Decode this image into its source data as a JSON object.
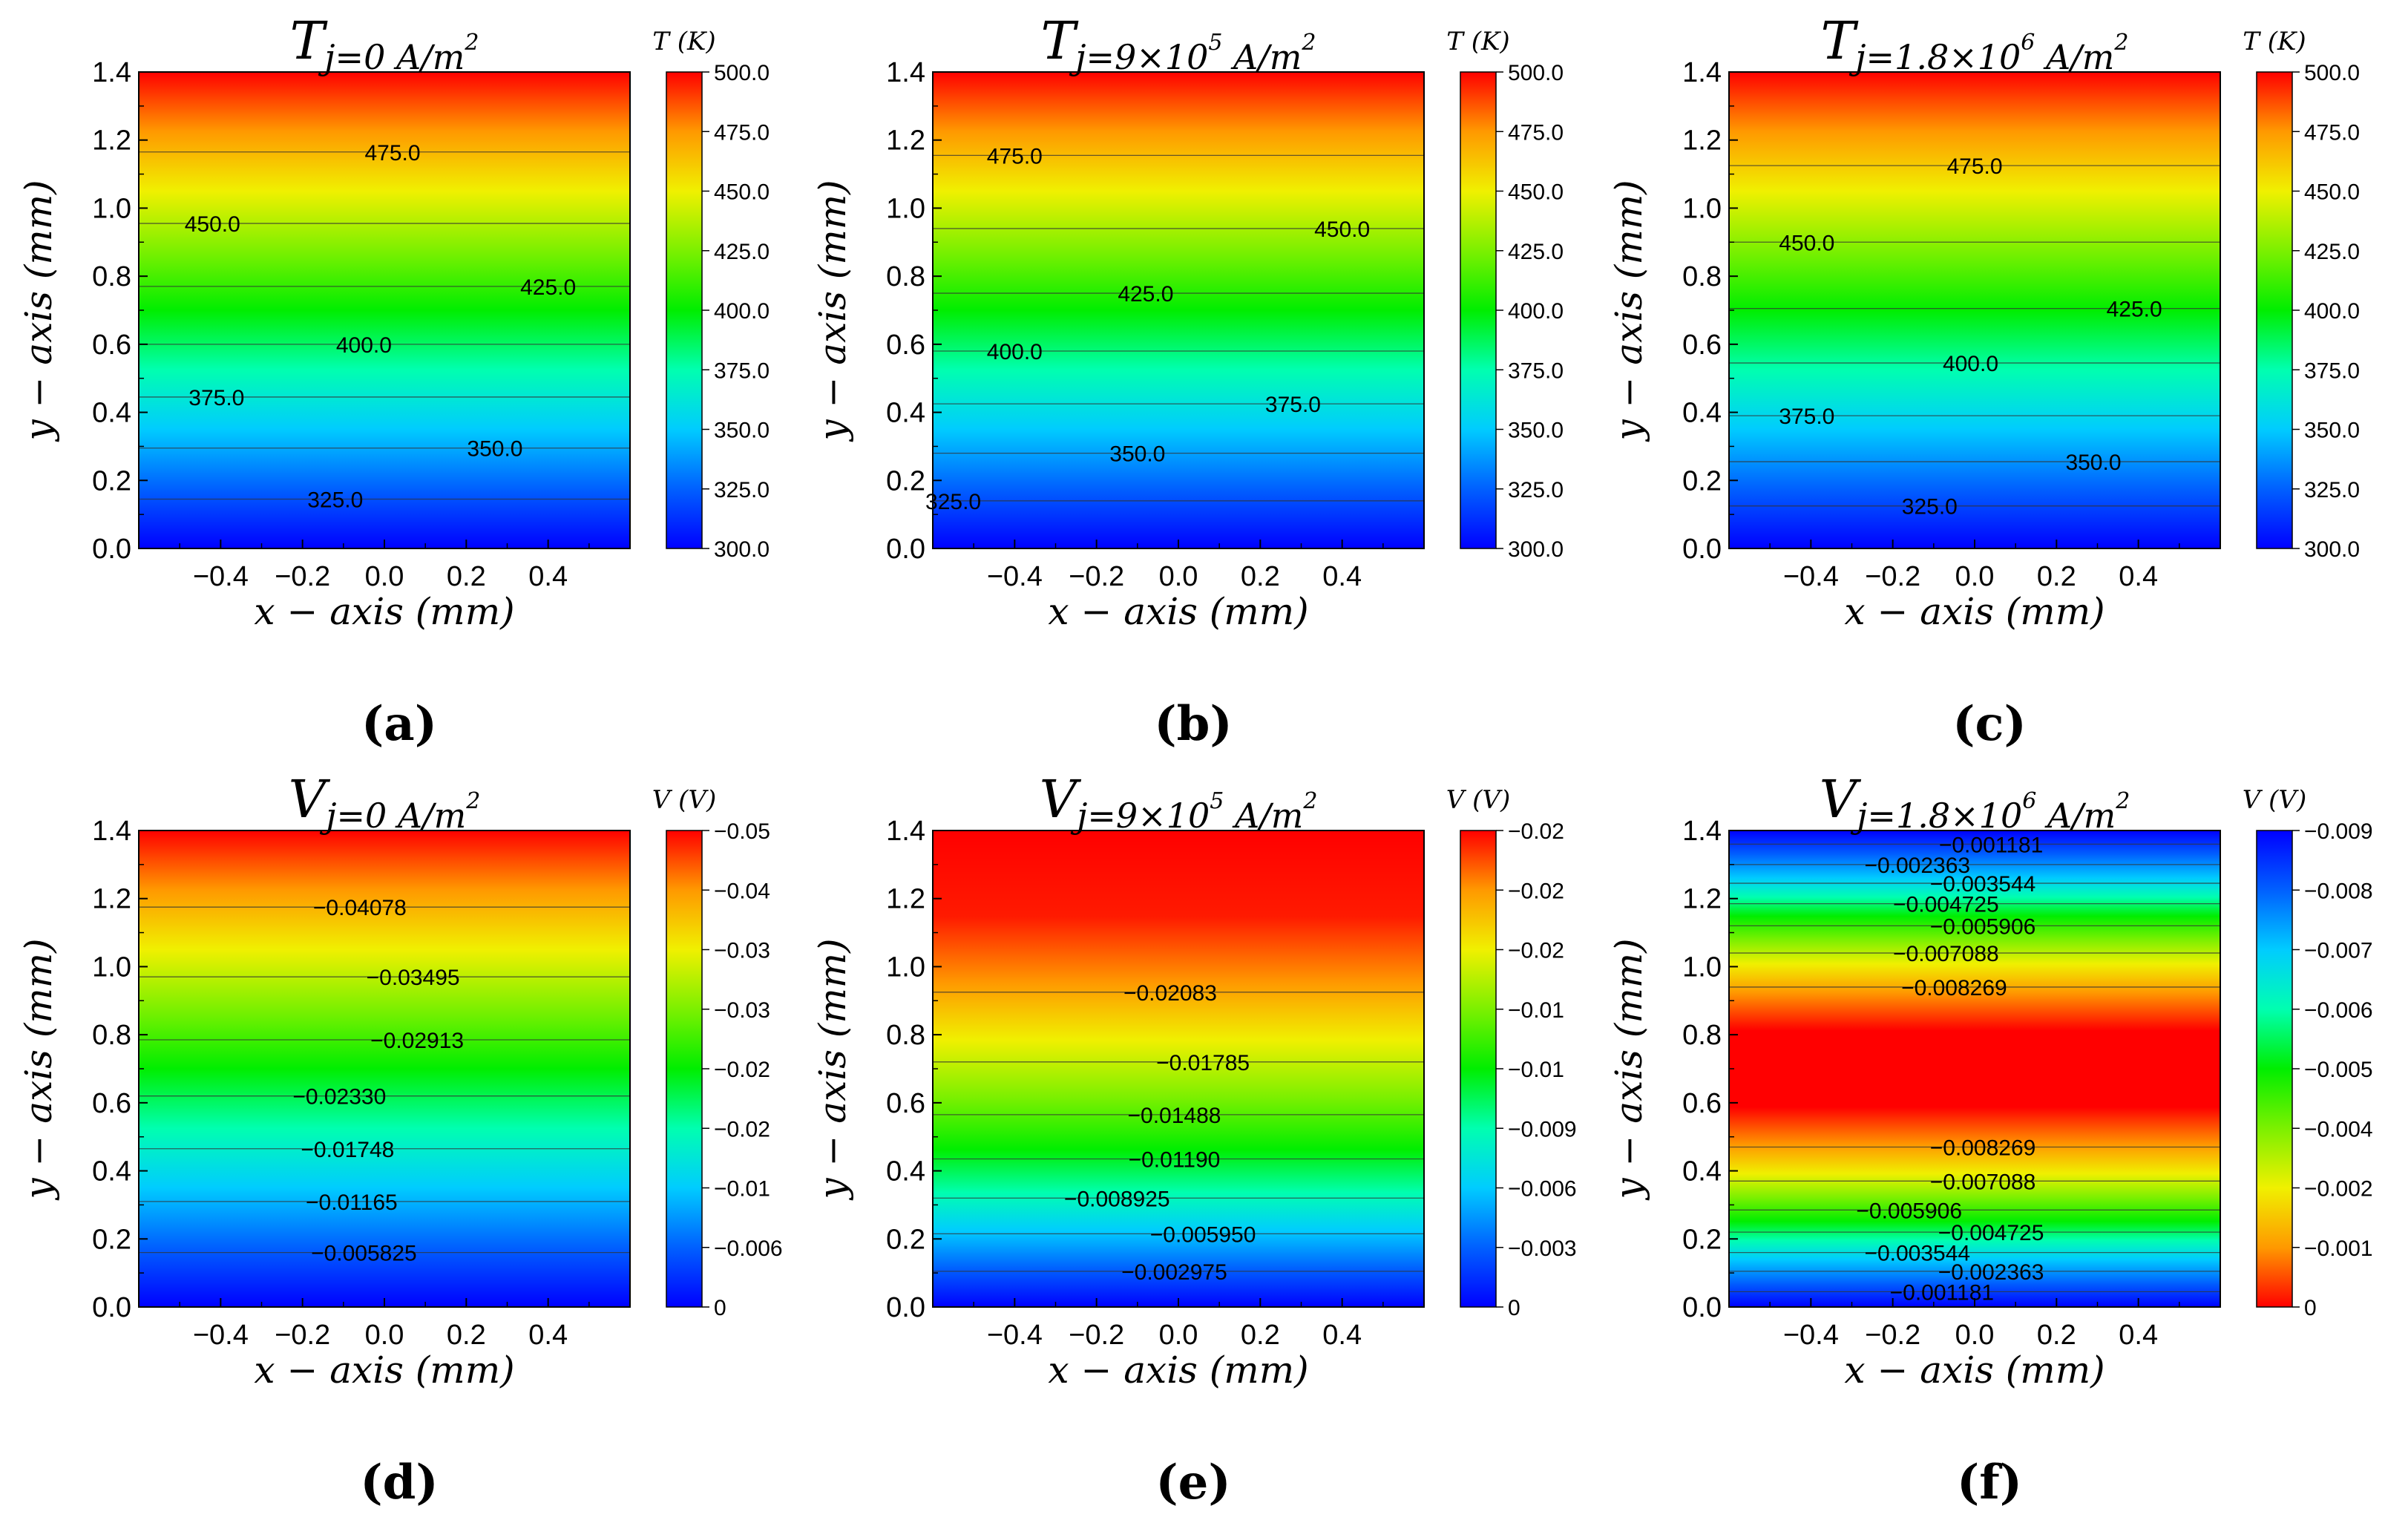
{
  "chart_data": [
    {
      "type": "heatmap",
      "panel": "(a)",
      "title": {
        "main": "T",
        "sub": "j=0 A/m",
        "sup": "2"
      },
      "xlabel": "x − axis (mm)",
      "ylabel": "y − axis (mm)",
      "x_ticks": [
        "−0.4",
        "−0.2",
        "0.0",
        "0.2",
        "0.4"
      ],
      "x_tick_values": [
        -0.4,
        -0.2,
        0.0,
        0.2,
        0.4
      ],
      "xlim": [
        -0.6,
        0.6
      ],
      "y_ticks": [
        "0.0",
        "0.2",
        "0.4",
        "0.6",
        "0.8",
        "1.0",
        "1.2",
        "1.4"
      ],
      "y_tick_values": [
        0.0,
        0.2,
        0.4,
        0.6,
        0.8,
        1.0,
        1.2,
        1.4
      ],
      "ylim": [
        0.0,
        1.4
      ],
      "colorbar": {
        "title": "T (K)",
        "reversed": false,
        "ticks": [
          "500.0",
          "475.0",
          "450.0",
          "425.0",
          "400.0",
          "375.0",
          "350.0",
          "325.0",
          "300.0"
        ],
        "tick_fractions": [
          1.0,
          0.875,
          0.75,
          0.625,
          0.5,
          0.375,
          0.25,
          0.125,
          0.0
        ]
      },
      "contours": [
        {
          "label": "325.0",
          "y": 0.145,
          "x": -0.12
        },
        {
          "label": "350.0",
          "y": 0.295,
          "x": 0.27
        },
        {
          "label": "375.0",
          "y": 0.445,
          "x": -0.41
        },
        {
          "label": "400.0",
          "y": 0.6,
          "x": -0.05
        },
        {
          "label": "425.0",
          "y": 0.77,
          "x": 0.4
        },
        {
          "label": "450.0",
          "y": 0.955,
          "x": -0.42
        },
        {
          "label": "475.0",
          "y": 1.165,
          "x": 0.02
        }
      ]
    },
    {
      "type": "heatmap",
      "panel": "(b)",
      "title": {
        "main": "T",
        "sub": "j=9×10",
        "sup": "5",
        "sub2": " A/m",
        "sup2": "2"
      },
      "xlabel": "x − axis (mm)",
      "ylabel": "y − axis (mm)",
      "x_ticks": [
        "−0.4",
        "−0.2",
        "0.0",
        "0.2",
        "0.4"
      ],
      "x_tick_values": [
        -0.4,
        -0.2,
        0.0,
        0.2,
        0.4
      ],
      "xlim": [
        -0.6,
        0.6
      ],
      "y_ticks": [
        "0.0",
        "0.2",
        "0.4",
        "0.6",
        "0.8",
        "1.0",
        "1.2",
        "1.4"
      ],
      "y_tick_values": [
        0.0,
        0.2,
        0.4,
        0.6,
        0.8,
        1.0,
        1.2,
        1.4
      ],
      "ylim": [
        0.0,
        1.4
      ],
      "colorbar": {
        "title": "T (K)",
        "reversed": false,
        "ticks": [
          "500.0",
          "475.0",
          "450.0",
          "425.0",
          "400.0",
          "375.0",
          "350.0",
          "325.0",
          "300.0"
        ],
        "tick_fractions": [
          1.0,
          0.875,
          0.75,
          0.625,
          0.5,
          0.375,
          0.25,
          0.125,
          0.0
        ]
      },
      "contours": [
        {
          "label": "325.0",
          "y": 0.14,
          "x": -0.55
        },
        {
          "label": "350.0",
          "y": 0.28,
          "x": -0.1
        },
        {
          "label": "375.0",
          "y": 0.425,
          "x": 0.28
        },
        {
          "label": "400.0",
          "y": 0.58,
          "x": -0.4
        },
        {
          "label": "425.0",
          "y": 0.75,
          "x": -0.08
        },
        {
          "label": "450.0",
          "y": 0.94,
          "x": 0.4
        },
        {
          "label": "475.0",
          "y": 1.155,
          "x": -0.4
        }
      ]
    },
    {
      "type": "heatmap",
      "panel": "(c)",
      "title": {
        "main": "T",
        "sub": "j=1.8×10",
        "sup": "6",
        "sub2": " A/m",
        "sup2": "2"
      },
      "xlabel": "x − axis (mm)",
      "ylabel": "y − axis (mm)",
      "x_ticks": [
        "−0.4",
        "−0.2",
        "0.0",
        "0.2",
        "0.4"
      ],
      "x_tick_values": [
        -0.4,
        -0.2,
        0.0,
        0.2,
        0.4
      ],
      "xlim": [
        -0.6,
        0.6
      ],
      "y_ticks": [
        "0.0",
        "0.2",
        "0.4",
        "0.6",
        "0.8",
        "1.0",
        "1.2",
        "1.4"
      ],
      "y_tick_values": [
        0.0,
        0.2,
        0.4,
        0.6,
        0.8,
        1.0,
        1.2,
        1.4
      ],
      "ylim": [
        0.0,
        1.4
      ],
      "colorbar": {
        "title": "T (K)",
        "reversed": false,
        "ticks": [
          "500.0",
          "475.0",
          "450.0",
          "425.0",
          "400.0",
          "375.0",
          "350.0",
          "325.0",
          "300.0"
        ],
        "tick_fractions": [
          1.0,
          0.875,
          0.75,
          0.625,
          0.5,
          0.375,
          0.25,
          0.125,
          0.0
        ]
      },
      "contours": [
        {
          "label": "325.0",
          "y": 0.125,
          "x": -0.11
        },
        {
          "label": "350.0",
          "y": 0.255,
          "x": 0.29
        },
        {
          "label": "375.0",
          "y": 0.39,
          "x": -0.41
        },
        {
          "label": "400.0",
          "y": 0.545,
          "x": -0.01
        },
        {
          "label": "425.0",
          "y": 0.705,
          "x": 0.39
        },
        {
          "label": "450.0",
          "y": 0.9,
          "x": -0.41
        },
        {
          "label": "475.0",
          "y": 1.125,
          "x": 0.0
        }
      ]
    },
    {
      "type": "heatmap",
      "panel": "(d)",
      "title": {
        "main": "V",
        "sub": "j=0 A/m",
        "sup": "2"
      },
      "xlabel": "x − axis (mm)",
      "ylabel": "y − axis (mm)",
      "x_ticks": [
        "−0.4",
        "−0.2",
        "0.0",
        "0.2",
        "0.4"
      ],
      "x_tick_values": [
        -0.4,
        -0.2,
        0.0,
        0.2,
        0.4
      ],
      "xlim": [
        -0.6,
        0.6
      ],
      "y_ticks": [
        "0.0",
        "0.2",
        "0.4",
        "0.6",
        "0.8",
        "1.0",
        "1.2",
        "1.4"
      ],
      "y_tick_values": [
        0.0,
        0.2,
        0.4,
        0.6,
        0.8,
        1.0,
        1.2,
        1.4
      ],
      "ylim": [
        0.0,
        1.4
      ],
      "colorbar": {
        "title": "V (V)",
        "reversed": false,
        "ticks": [
          "−0.05",
          "−0.04",
          "−0.03",
          "−0.03",
          "−0.02",
          "−0.02",
          "−0.01",
          "−0.006",
          "0"
        ],
        "tick_fractions": [
          1.0,
          0.875,
          0.75,
          0.625,
          0.5,
          0.375,
          0.25,
          0.125,
          0.0
        ]
      },
      "contours": [
        {
          "label": "−0.005825",
          "y": 0.16,
          "x": -0.05
        },
        {
          "label": "−0.01165",
          "y": 0.31,
          "x": -0.08
        },
        {
          "label": "−0.01748",
          "y": 0.465,
          "x": -0.09
        },
        {
          "label": "−0.02330",
          "y": 0.62,
          "x": -0.11
        },
        {
          "label": "−0.02913",
          "y": 0.785,
          "x": 0.08
        },
        {
          "label": "−0.03495",
          "y": 0.97,
          "x": 0.07
        },
        {
          "label": "−0.04078",
          "y": 1.175,
          "x": -0.06
        }
      ]
    },
    {
      "type": "heatmap",
      "panel": "(e)",
      "title": {
        "main": "V",
        "sub": "j=9×10",
        "sup": "5",
        "sub2": " A/m",
        "sup2": "2"
      },
      "xlabel": "x − axis (mm)",
      "ylabel": "y − axis (mm)",
      "x_ticks": [
        "−0.4",
        "−0.2",
        "0.0",
        "0.2",
        "0.4"
      ],
      "x_tick_values": [
        -0.4,
        -0.2,
        0.0,
        0.2,
        0.4
      ],
      "xlim": [
        -0.6,
        0.6
      ],
      "y_ticks": [
        "0.0",
        "0.2",
        "0.4",
        "0.6",
        "0.8",
        "1.0",
        "1.2",
        "1.4"
      ],
      "y_tick_values": [
        0.0,
        0.2,
        0.4,
        0.6,
        0.8,
        1.0,
        1.2,
        1.4
      ],
      "ylim": [
        0.0,
        1.4
      ],
      "colorbar": {
        "title": "V (V)",
        "reversed": false,
        "ticks": [
          "−0.02",
          "−0.02",
          "−0.02",
          "−0.01",
          "−0.01",
          "−0.009",
          "−0.006",
          "−0.003",
          "0"
        ],
        "tick_fractions": [
          1.0,
          0.875,
          0.75,
          0.625,
          0.5,
          0.375,
          0.25,
          0.125,
          0.0
        ]
      },
      "contours": [
        {
          "label": "−0.002975",
          "y": 0.105,
          "x": -0.01
        },
        {
          "label": "−0.005950",
          "y": 0.215,
          "x": 0.06
        },
        {
          "label": "−0.008925",
          "y": 0.32,
          "x": -0.15
        },
        {
          "label": "−0.01190",
          "y": 0.435,
          "x": -0.01
        },
        {
          "label": "−0.01488",
          "y": 0.565,
          "x": -0.01
        },
        {
          "label": "−0.01785",
          "y": 0.72,
          "x": 0.06
        },
        {
          "label": "−0.02083",
          "y": 0.925,
          "x": -0.02
        }
      ]
    },
    {
      "type": "heatmap",
      "panel": "(f)",
      "title": {
        "main": "V",
        "sub": "j=1.8×10",
        "sup": "6",
        "sub2": " A/m",
        "sup2": "2"
      },
      "xlabel": "x − axis (mm)",
      "ylabel": "y − axis (mm)",
      "x_ticks": [
        "−0.4",
        "−0.2",
        "0.0",
        "0.2",
        "0.4"
      ],
      "x_tick_values": [
        -0.4,
        -0.2,
        0.0,
        0.2,
        0.4
      ],
      "xlim": [
        -0.6,
        0.6
      ],
      "y_ticks": [
        "0.0",
        "0.2",
        "0.4",
        "0.6",
        "0.8",
        "1.0",
        "1.2",
        "1.4"
      ],
      "y_tick_values": [
        0.0,
        0.2,
        0.4,
        0.6,
        0.8,
        1.0,
        1.2,
        1.4
      ],
      "ylim": [
        0.0,
        1.4
      ],
      "colorbar": {
        "title": "V (V)",
        "reversed": true,
        "ticks": [
          "−0.009",
          "−0.008",
          "−0.007",
          "−0.006",
          "−0.005",
          "−0.004",
          "−0.002",
          "−0.001",
          "0"
        ],
        "tick_fractions": [
          1.0,
          0.875,
          0.75,
          0.625,
          0.5,
          0.375,
          0.25,
          0.125,
          0.0
        ]
      },
      "contours": [
        {
          "label": "−0.001181",
          "y": 0.045,
          "x": -0.08
        },
        {
          "label": "−0.002363",
          "y": 0.105,
          "x": 0.04
        },
        {
          "label": "−0.003544",
          "y": 0.16,
          "x": -0.14
        },
        {
          "label": "−0.004725",
          "y": 0.22,
          "x": 0.04
        },
        {
          "label": "−0.005906",
          "y": 0.285,
          "x": -0.16
        },
        {
          "label": "−0.007088",
          "y": 0.37,
          "x": 0.02
        },
        {
          "label": "−0.008269",
          "y": 0.47,
          "x": 0.02
        },
        {
          "label": "−0.008269",
          "y": 0.94,
          "x": -0.05
        },
        {
          "label": "−0.007088",
          "y": 1.04,
          "x": -0.07
        },
        {
          "label": "−0.005906",
          "y": 1.12,
          "x": 0.02
        },
        {
          "label": "−0.004725",
          "y": 1.185,
          "x": -0.07
        },
        {
          "label": "−0.003544",
          "y": 1.245,
          "x": 0.02
        },
        {
          "label": "−0.002363",
          "y": 1.3,
          "x": -0.14
        },
        {
          "label": "−0.001181",
          "y": 1.36,
          "x": 0.04
        }
      ]
    }
  ]
}
